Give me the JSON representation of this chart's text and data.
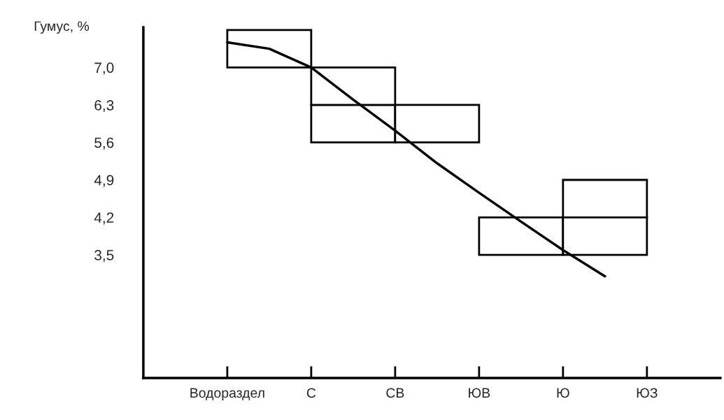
{
  "chart_data": {
    "type": "bar",
    "ylabel": "Гумус, %",
    "categories": [
      "Водораздел",
      null,
      "С",
      null,
      "СВ",
      null,
      "ЮВ",
      null,
      "Ю",
      null,
      "ЮЗ"
    ],
    "ylim": [
      1.2,
      7.75
    ],
    "yticks": [
      {
        "value": 3.5,
        "label": "3,5"
      },
      {
        "value": 4.2,
        "label": "4,2"
      },
      {
        "value": 4.9,
        "label": "4,9"
      },
      {
        "value": 5.6,
        "label": "5,6"
      },
      {
        "value": 6.3,
        "label": "6,3"
      },
      {
        "value": 7.0,
        "label": "7,0"
      }
    ],
    "grid": false,
    "legend": false,
    "series": [
      {
        "color": "#ffffff",
        "values": [
          null,
          0.7,
          null,
          0.7,
          null,
          0.7,
          null,
          0.7,
          null,
          0.7,
          null
        ],
        "base": [
          null,
          7.0,
          null,
          5.6,
          null,
          5.6,
          null,
          3.5,
          null,
          3.5,
          null
        ]
      },
      {
        "color": "#ffffff",
        "values": [
          null,
          null,
          null,
          0.7,
          null,
          null,
          null,
          null,
          null,
          0.7,
          null
        ],
        "base": [
          null,
          null,
          null,
          6.3,
          null,
          null,
          null,
          null,
          null,
          4.2,
          null
        ]
      },
      {
        "type": "line",
        "color": "#000000",
        "values": [
          7.47,
          7.35,
          7.0,
          6.4,
          5.82,
          5.21,
          4.66,
          4.12,
          3.59,
          3.1,
          null
        ],
        "marker": "none",
        "line_style": "solid"
      }
    ]
  }
}
